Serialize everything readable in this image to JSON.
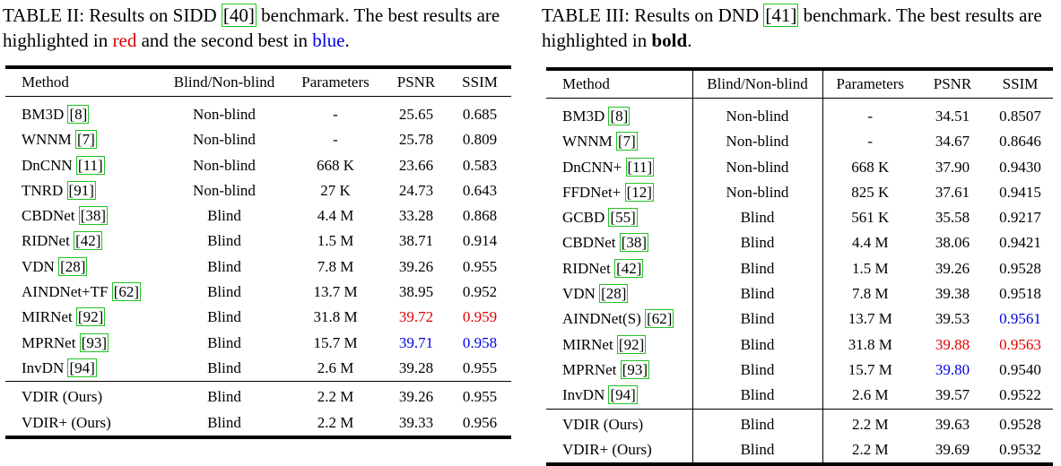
{
  "table2": {
    "caption_prefix": "TABLE II: Results on SIDD ",
    "caption_ref": "[40]",
    "caption_mid": " benchmark. The best results are highlighted in ",
    "caption_red": "red",
    "caption_and": " and the second best in ",
    "caption_blue": "blue",
    "caption_end": ".",
    "headers": [
      "Method",
      "Blind/Non-blind",
      "Parameters",
      "PSNR",
      "SSIM"
    ],
    "rows": [
      {
        "method": "BM3D ",
        "ref": "[8]",
        "type": "Non-blind",
        "params": "-",
        "psnr": "25.65",
        "ssim": "0.685"
      },
      {
        "method": "WNNM ",
        "ref": "[7]",
        "type": "Non-blind",
        "params": "-",
        "psnr": "25.78",
        "ssim": "0.809"
      },
      {
        "method": "DnCNN ",
        "ref": "[11]",
        "type": "Non-blind",
        "params": "668 K",
        "psnr": "23.66",
        "ssim": "0.583"
      },
      {
        "method": "TNRD ",
        "ref": "[91]",
        "type": "Non-blind",
        "params": "27 K",
        "psnr": "24.73",
        "ssim": "0.643"
      },
      {
        "method": "CBDNet ",
        "ref": "[38]",
        "type": "Blind",
        "params": "4.4 M",
        "psnr": "33.28",
        "ssim": "0.868"
      },
      {
        "method": "RIDNet ",
        "ref": "[42]",
        "type": "Blind",
        "params": "1.5 M",
        "psnr": "38.71",
        "ssim": "0.914"
      },
      {
        "method": "VDN ",
        "ref": "[28]",
        "type": "Blind",
        "params": "7.8 M",
        "psnr": "39.26",
        "ssim": "0.955"
      },
      {
        "method": "AINDNet+TF ",
        "ref": "[62]",
        "type": "Blind",
        "params": "13.7 M",
        "psnr": "38.95",
        "ssim": "0.952"
      },
      {
        "method": "MIRNet ",
        "ref": "[92]",
        "type": "Blind",
        "params": "31.8 M",
        "psnr": "39.72",
        "ssim": "0.959",
        "psnr_color": "#e00000",
        "ssim_color": "#e00000"
      },
      {
        "method": "MPRNet ",
        "ref": "[93]",
        "type": "Blind",
        "params": "15.7 M",
        "psnr": "39.71",
        "ssim": "0.958",
        "psnr_color": "#0000e6",
        "ssim_color": "#0000e6"
      },
      {
        "method": "InvDN ",
        "ref": "[94]",
        "type": "Blind",
        "params": "2.6 M",
        "psnr": "39.28",
        "ssim": "0.955"
      }
    ],
    "ours": [
      {
        "method": "VDIR (Ours)",
        "type": "Blind",
        "params": "2.2 M",
        "psnr": "39.26",
        "ssim": "0.955"
      },
      {
        "method": "VDIR+ (Ours)",
        "type": "Blind",
        "params": "2.2 M",
        "psnr": "39.33",
        "ssim": "0.956"
      }
    ]
  },
  "table3": {
    "caption_prefix": "TABLE III: Results on DND ",
    "caption_ref": "[41]",
    "caption_mid": " benchmark. The best results are highlighted in ",
    "caption_bold": "bold",
    "caption_end": ".",
    "headers": [
      "Method",
      "Blind/Non-blind",
      "Parameters",
      "PSNR",
      "SSIM"
    ],
    "rows": [
      {
        "method": "BM3D ",
        "ref": "[8]",
        "type": "Non-blind",
        "params": "-",
        "psnr": "34.51",
        "ssim": "0.8507"
      },
      {
        "method": "WNNM ",
        "ref": "[7]",
        "type": "Non-blind",
        "params": "-",
        "psnr": "34.67",
        "ssim": "0.8646"
      },
      {
        "method": "DnCNN+ ",
        "ref": "[11]",
        "type": "Non-blind",
        "params": "668 K",
        "psnr": "37.90",
        "ssim": "0.9430"
      },
      {
        "method": "FFDNet+ ",
        "ref": "[12]",
        "type": "Non-blind",
        "params": "825 K",
        "psnr": "37.61",
        "ssim": "0.9415"
      },
      {
        "method": "GCBD ",
        "ref": "[55]",
        "type": "Blind",
        "params": "561 K",
        "psnr": "35.58",
        "ssim": "0.9217"
      },
      {
        "method": "CBDNet ",
        "ref": "[38]",
        "type": "Blind",
        "params": "4.4 M",
        "psnr": "38.06",
        "ssim": "0.9421"
      },
      {
        "method": "RIDNet ",
        "ref": "[42]",
        "type": "Blind",
        "params": "1.5 M",
        "psnr": "39.26",
        "ssim": "0.9528"
      },
      {
        "method": "VDN ",
        "ref": "[28]",
        "type": "Blind",
        "params": "7.8 M",
        "psnr": "39.38",
        "ssim": "0.9518"
      },
      {
        "method": "AINDNet(S) ",
        "ref": "[62]",
        "type": "Blind",
        "params": "13.7 M",
        "psnr": "39.53",
        "ssim": "0.9561",
        "ssim_color": "#0000e6"
      },
      {
        "method": "MIRNet ",
        "ref": "[92]",
        "type": "Blind",
        "params": "31.8 M",
        "psnr": "39.88",
        "ssim": "0.9563",
        "psnr_color": "#e00000",
        "ssim_color": "#e00000"
      },
      {
        "method": "MPRNet ",
        "ref": "[93]",
        "type": "Blind",
        "params": "15.7 M",
        "psnr": "39.80",
        "ssim": "0.9540",
        "psnr_color": "#0000e6"
      },
      {
        "method": "InvDN ",
        "ref": "[94]",
        "type": "Blind",
        "params": "2.6 M",
        "psnr": "39.57",
        "ssim": "0.9522"
      }
    ],
    "ours": [
      {
        "method": "VDIR (Ours)",
        "type": "Blind",
        "params": "2.2 M",
        "psnr": "39.63",
        "ssim": "0.9528"
      },
      {
        "method": "VDIR+ (Ours)",
        "type": "Blind",
        "params": "2.2 M",
        "psnr": "39.69",
        "ssim": "0.9532"
      }
    ]
  }
}
